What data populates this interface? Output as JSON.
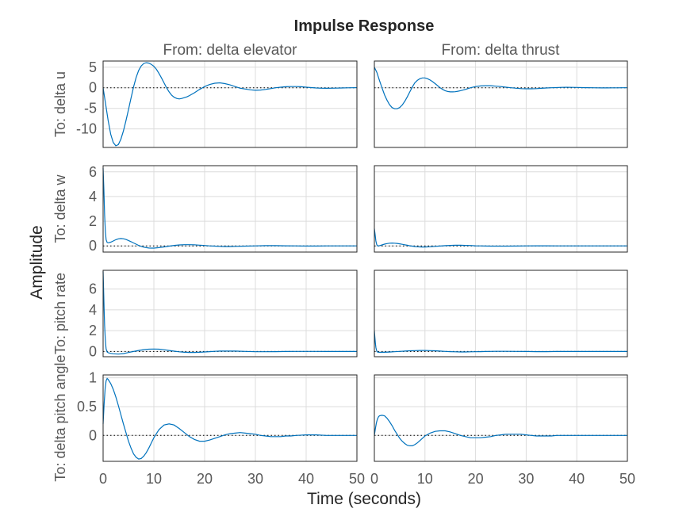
{
  "chart_data": {
    "type": "line",
    "title": "Impulse Response",
    "xlabel": "Time (seconds)",
    "ylabel": "Amplitude",
    "xlim": [
      0,
      50
    ],
    "xticks": [
      0,
      10,
      20,
      30,
      40,
      50
    ],
    "grid": true,
    "line_color": "#0072bd",
    "columns": [
      "From: delta elevator",
      "From: delta thrust"
    ],
    "rows": [
      {
        "label": "To: delta u",
        "ylim": [
          -14.5,
          6.5
        ],
        "yticks": [
          5,
          0,
          -5,
          -10
        ],
        "series": [
          {
            "x": [
              0,
              0.5,
              1,
              1.5,
              2,
              2.5,
              3,
              3.5,
              4,
              4.5,
              5,
              5.5,
              6,
              6.5,
              7,
              7.5,
              8,
              8.5,
              9,
              9.5,
              10,
              10.5,
              11,
              11.5,
              12,
              12.5,
              13,
              13.5,
              14,
              14.5,
              15,
              15.5,
              16,
              16.5,
              17,
              18,
              19,
              20,
              21,
              22,
              23,
              24,
              25,
              26,
              27,
              28,
              29,
              30,
              31,
              32,
              33,
              34,
              35,
              36,
              37,
              38,
              39,
              40,
              41,
              42,
              43,
              44,
              45,
              46,
              47,
              48,
              49,
              50
            ],
            "y": [
              0,
              -4,
              -8,
              -11.3,
              -13.3,
              -14.1,
              -13.8,
              -12.5,
              -10.5,
              -8,
              -5.3,
              -2.5,
              0.2,
              2.5,
              4.2,
              5.3,
              5.9,
              6.1,
              6,
              5.7,
              5.2,
              4.5,
              3.5,
              2.4,
              1.2,
              0,
              -1,
              -1.8,
              -2.3,
              -2.6,
              -2.7,
              -2.6,
              -2.4,
              -2.2,
              -1.9,
              -1.2,
              -0.4,
              0.3,
              0.8,
              1.1,
              1.2,
              1,
              0.7,
              0.3,
              -0.1,
              -0.3,
              -0.5,
              -0.6,
              -0.55,
              -0.4,
              -0.2,
              0,
              0.15,
              0.25,
              0.3,
              0.3,
              0.25,
              0.15,
              0.05,
              -0.05,
              -0.1,
              -0.12,
              -0.1,
              -0.08,
              -0.05,
              -0.02,
              0,
              0.02
            ]
          },
          {
            "x": [
              0,
              0.5,
              1,
              1.5,
              2,
              2.5,
              3,
              3.5,
              4,
              4.5,
              5,
              5.5,
              6,
              6.5,
              7,
              7.5,
              8,
              8.5,
              9,
              9.5,
              10,
              10.5,
              11,
              11.5,
              12,
              12.5,
              13,
              13.5,
              14,
              14.5,
              15,
              15.5,
              16,
              16.5,
              17,
              18,
              19,
              20,
              21,
              22,
              23,
              24,
              25,
              26,
              27,
              28,
              29,
              30,
              31,
              32,
              33,
              34,
              35,
              36,
              37,
              38,
              39,
              40,
              41,
              42,
              43,
              44,
              45,
              46,
              47,
              48,
              49,
              50
            ],
            "y": [
              5,
              3.7,
              1.8,
              0,
              -1.7,
              -3,
              -4.1,
              -4.8,
              -5.1,
              -5.1,
              -4.8,
              -4.2,
              -3.3,
              -2.2,
              -1,
              0.2,
              1.2,
              1.8,
              2.2,
              2.4,
              2.4,
              2.2,
              1.9,
              1.5,
              1,
              0.5,
              0,
              -0.4,
              -0.7,
              -0.9,
              -1,
              -1,
              -0.95,
              -0.85,
              -0.7,
              -0.4,
              0,
              0.3,
              0.45,
              0.5,
              0.5,
              0.4,
              0.3,
              0.15,
              0,
              -0.1,
              -0.2,
              -0.25,
              -0.25,
              -0.2,
              -0.12,
              -0.05,
              0,
              0.05,
              0.1,
              0.12,
              0.1,
              0.08,
              0.05,
              0.02,
              0,
              -0.02,
              -0.03,
              -0.03,
              -0.02,
              -0.01,
              0,
              0
            ]
          }
        ]
      },
      {
        "label": "To: delta w",
        "ylim": [
          -0.5,
          6.5
        ],
        "yticks": [
          6,
          4,
          2,
          0
        ],
        "series": [
          {
            "x": [
              0,
              0.15,
              0.3,
              0.45,
              0.6,
              0.8,
              1,
              1.5,
              2,
              2.5,
              3,
              3.5,
              4,
              4.5,
              5,
              5.5,
              6,
              6.5,
              7,
              7.5,
              8,
              8.5,
              9,
              9.5,
              10,
              11,
              12,
              13,
              14,
              15,
              16,
              17,
              18,
              19,
              20,
              21,
              22,
              23,
              24,
              25,
              26,
              28,
              30,
              32,
              34,
              36,
              38,
              40,
              42,
              44,
              46,
              48,
              50
            ],
            "y": [
              6.3,
              4.5,
              2.5,
              1.1,
              0.5,
              0.28,
              0.25,
              0.3,
              0.4,
              0.5,
              0.57,
              0.6,
              0.58,
              0.52,
              0.44,
              0.34,
              0.24,
              0.14,
              0.04,
              -0.04,
              -0.1,
              -0.14,
              -0.17,
              -0.18,
              -0.18,
              -0.14,
              -0.08,
              -0.02,
              0.04,
              0.08,
              0.1,
              0.1,
              0.09,
              0.06,
              0.03,
              0,
              -0.02,
              -0.04,
              -0.05,
              -0.05,
              -0.04,
              -0.02,
              0,
              0.02,
              0.02,
              0.01,
              0,
              -0.01,
              -0.01,
              0,
              0,
              0,
              0
            ]
          },
          {
            "x": [
              0,
              0.15,
              0.3,
              0.45,
              0.6,
              0.8,
              1,
              1.5,
              2,
              2.5,
              3,
              3.5,
              4,
              4.5,
              5,
              5.5,
              6,
              6.5,
              7,
              7.5,
              8,
              8.5,
              9,
              9.5,
              10,
              11,
              12,
              13,
              14,
              15,
              16,
              17,
              18,
              19,
              20,
              21,
              22,
              23,
              24,
              25,
              26,
              28,
              30,
              32,
              34,
              36,
              38,
              40,
              42,
              44,
              46,
              48,
              50
            ],
            "y": [
              1.4,
              0.9,
              0.4,
              0.12,
              0.02,
              0,
              0.02,
              0.08,
              0.14,
              0.19,
              0.22,
              0.23,
              0.22,
              0.2,
              0.17,
              0.13,
              0.09,
              0.05,
              0.01,
              -0.02,
              -0.05,
              -0.07,
              -0.08,
              -0.09,
              -0.09,
              -0.07,
              -0.04,
              -0.01,
              0.02,
              0.04,
              0.05,
              0.05,
              0.04,
              0.03,
              0.01,
              0,
              -0.01,
              -0.02,
              -0.02,
              -0.02,
              -0.02,
              -0.01,
              0,
              0.01,
              0.01,
              0,
              0,
              0,
              0,
              0,
              0,
              0,
              0
            ]
          }
        ]
      },
      {
        "label": "To: pitch rate",
        "ylim": [
          -0.5,
          7.8
        ],
        "yticks": [
          6,
          4,
          2,
          0
        ],
        "series": [
          {
            "x": [
              0,
              0.1,
              0.2,
              0.3,
              0.4,
              0.5,
              0.6,
              0.8,
              1,
              1.5,
              2,
              3,
              4,
              5,
              6,
              7,
              8,
              9,
              10,
              11,
              12,
              13,
              14,
              15,
              16,
              17,
              18,
              19,
              20,
              21,
              22,
              23,
              24,
              26,
              28,
              30,
              32,
              34,
              36,
              38,
              40,
              42,
              44,
              46,
              48,
              50
            ],
            "y": [
              7.7,
              6,
              4,
              2.5,
              1.4,
              0.7,
              0.25,
              -0.05,
              -0.12,
              -0.18,
              -0.22,
              -0.25,
              -0.2,
              -0.1,
              0,
              0.1,
              0.18,
              0.22,
              0.24,
              0.22,
              0.17,
              0.1,
              0.03,
              -0.03,
              -0.07,
              -0.09,
              -0.09,
              -0.07,
              -0.04,
              -0.01,
              0.02,
              0.04,
              0.05,
              0.04,
              0.01,
              -0.02,
              -0.02,
              -0.01,
              0,
              0.01,
              0.01,
              0.01,
              0,
              0,
              0,
              0
            ]
          },
          {
            "x": [
              0,
              0.1,
              0.2,
              0.3,
              0.4,
              0.5,
              0.6,
              0.8,
              1,
              1.5,
              2,
              3,
              4,
              5,
              6,
              7,
              8,
              9,
              10,
              11,
              12,
              13,
              14,
              15,
              16,
              17,
              18,
              19,
              20,
              21,
              22,
              23,
              24,
              26,
              28,
              30,
              32,
              34,
              36,
              38,
              40,
              42,
              44,
              46,
              48,
              50
            ],
            "y": [
              2,
              1.4,
              0.8,
              0.4,
              0.15,
              0.02,
              -0.04,
              -0.07,
              -0.08,
              -0.08,
              -0.07,
              -0.05,
              -0.02,
              0.01,
              0.04,
              0.07,
              0.09,
              0.1,
              0.1,
              0.09,
              0.07,
              0.04,
              0.01,
              -0.01,
              -0.03,
              -0.04,
              -0.04,
              -0.03,
              -0.02,
              -0.01,
              0,
              0.01,
              0.02,
              0.02,
              0.01,
              0,
              -0.01,
              -0.01,
              0,
              0,
              0,
              0,
              0,
              0,
              0,
              0
            ]
          }
        ]
      },
      {
        "label": "To: delta pitch angle",
        "ylim": [
          -0.45,
          1.05
        ],
        "yticks": [
          1,
          0.5,
          0
        ],
        "series": [
          {
            "x": [
              0,
              0.2,
              0.4,
              0.6,
              0.8,
              1,
              1.5,
              2,
              2.5,
              3,
              3.5,
              4,
              4.5,
              5,
              5.5,
              6,
              6.5,
              7,
              7.5,
              8,
              8.5,
              9,
              9.5,
              10,
              11,
              12,
              13,
              14,
              15,
              16,
              17,
              18,
              19,
              20,
              21,
              22,
              23,
              24,
              25,
              26,
              27,
              28,
              29,
              30,
              31,
              32,
              33,
              34,
              35,
              36,
              37,
              38,
              40,
              42,
              44,
              46,
              48,
              50
            ],
            "y": [
              0.2,
              0.55,
              0.82,
              0.95,
              0.99,
              0.97,
              0.9,
              0.8,
              0.67,
              0.52,
              0.36,
              0.2,
              0.05,
              -0.1,
              -0.22,
              -0.32,
              -0.38,
              -0.41,
              -0.4,
              -0.36,
              -0.3,
              -0.22,
              -0.13,
              -0.04,
              0.1,
              0.18,
              0.2,
              0.18,
              0.12,
              0.05,
              -0.02,
              -0.07,
              -0.1,
              -0.1,
              -0.08,
              -0.05,
              -0.02,
              0.01,
              0.03,
              0.04,
              0.05,
              0.04,
              0.03,
              0.02,
              0,
              -0.01,
              -0.02,
              -0.02,
              -0.02,
              -0.01,
              -0.01,
              0,
              0.01,
              0.01,
              0,
              0,
              0,
              0
            ]
          },
          {
            "x": [
              0,
              0.2,
              0.4,
              0.6,
              0.8,
              1,
              1.5,
              2,
              2.5,
              3,
              3.5,
              4,
              4.5,
              5,
              5.5,
              6,
              6.5,
              7,
              7.5,
              8,
              8.5,
              9,
              9.5,
              10,
              11,
              12,
              13,
              14,
              15,
              16,
              17,
              18,
              19,
              20,
              21,
              22,
              23,
              24,
              25,
              26,
              27,
              28,
              29,
              30,
              31,
              32,
              33,
              34,
              35,
              36,
              37,
              38,
              40,
              42,
              44,
              46,
              48,
              50
            ],
            "y": [
              0,
              0.12,
              0.22,
              0.28,
              0.32,
              0.34,
              0.35,
              0.34,
              0.3,
              0.24,
              0.17,
              0.09,
              0.02,
              -0.05,
              -0.1,
              -0.14,
              -0.17,
              -0.18,
              -0.18,
              -0.16,
              -0.13,
              -0.09,
              -0.05,
              -0.01,
              0.04,
              0.07,
              0.08,
              0.08,
              0.06,
              0.03,
              0,
              -0.02,
              -0.04,
              -0.04,
              -0.04,
              -0.03,
              -0.02,
              0,
              0.01,
              0.02,
              0.02,
              0.02,
              0.02,
              0.01,
              0,
              -0.01,
              -0.01,
              -0.01,
              -0.01,
              0,
              0,
              0,
              0,
              0,
              0,
              0,
              0,
              0
            ]
          }
        ]
      }
    ]
  }
}
